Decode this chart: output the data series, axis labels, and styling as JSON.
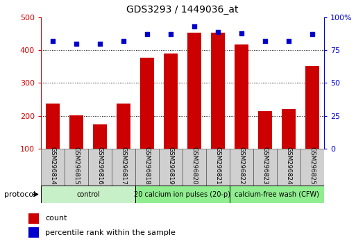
{
  "title": "GDS3293 / 1449036_at",
  "samples": [
    "GSM296814",
    "GSM296815",
    "GSM296816",
    "GSM296817",
    "GSM296818",
    "GSM296819",
    "GSM296820",
    "GSM296821",
    "GSM296822",
    "GSM296823",
    "GSM296824",
    "GSM296825"
  ],
  "counts": [
    238,
    202,
    175,
    238,
    378,
    390,
    453,
    453,
    418,
    215,
    220,
    352
  ],
  "percentiles": [
    82,
    80,
    80,
    82,
    87,
    87,
    93,
    89,
    88,
    82,
    82,
    87
  ],
  "groups": [
    {
      "label": "control",
      "start": 0,
      "end": 4,
      "color": "#c8f0c8"
    },
    {
      "label": "20 calcium ion pulses (20-p)",
      "start": 4,
      "end": 8,
      "color": "#90ee90"
    },
    {
      "label": "calcium-free wash (CFW)",
      "start": 8,
      "end": 12,
      "color": "#90ee90"
    }
  ],
  "bar_color": "#cc0000",
  "dot_color": "#0000cc",
  "ylim_left": [
    100,
    500
  ],
  "ylim_right": [
    0,
    100
  ],
  "yticks_left": [
    100,
    200,
    300,
    400,
    500
  ],
  "yticks_right": [
    0,
    25,
    50,
    75,
    100
  ],
  "ylabel_left_color": "#cc0000",
  "ylabel_right_color": "#0000cc",
  "background_color": "#ffffff",
  "legend_count_label": "count",
  "legend_pct_label": "percentile rank within the sample",
  "protocol_label": "protocol",
  "figsize": [
    5.13,
    3.54
  ],
  "dpi": 100
}
